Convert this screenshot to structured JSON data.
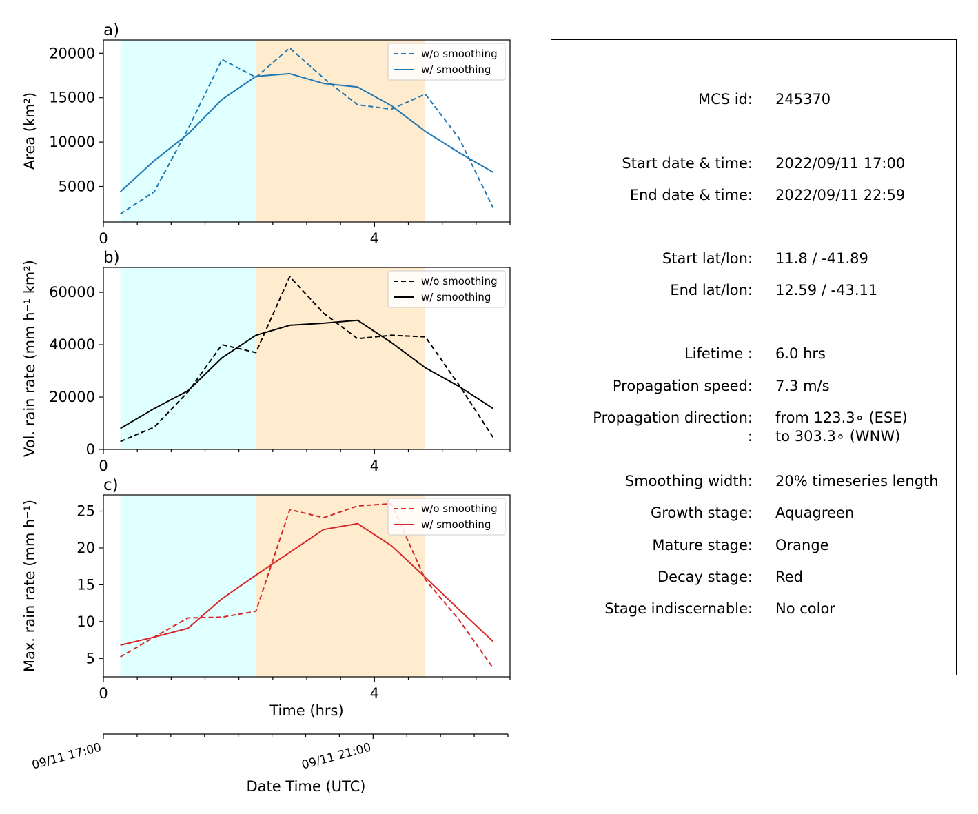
{
  "chart_data": [
    {
      "type": "line",
      "panel_label": "a)",
      "ylabel": "Area  (km²)",
      "xlabel": "",
      "xlim": [
        0,
        6
      ],
      "ylim": [
        1000,
        21500
      ],
      "xticks": [
        0,
        4
      ],
      "yticks": [
        5000,
        10000,
        15000,
        20000
      ],
      "stages": [
        {
          "name": "Growth",
          "from": 0.25,
          "to": 2.25,
          "color": "#e0ffff"
        },
        {
          "name": "Mature",
          "from": 2.25,
          "to": 4.75,
          "color": "#ffebcd"
        }
      ],
      "legend": "top-right",
      "series": [
        {
          "name": "w/o smoothing",
          "style": "dashed",
          "color": "#1f77b4",
          "x": [
            0.25,
            0.75,
            1.25,
            1.75,
            2.25,
            2.75,
            3.25,
            3.75,
            4.25,
            4.75,
            5.25,
            5.75
          ],
          "values": [
            1900,
            4400,
            11500,
            19300,
            17300,
            20600,
            17200,
            14200,
            13700,
            15400,
            10400,
            2600
          ]
        },
        {
          "name": "w/ smoothing",
          "style": "solid",
          "color": "#1f77b4",
          "x": [
            0.25,
            0.75,
            1.25,
            1.75,
            2.25,
            2.75,
            3.25,
            3.75,
            4.25,
            4.75,
            5.25,
            5.75
          ],
          "values": [
            4400,
            7900,
            10900,
            14800,
            17400,
            17700,
            16600,
            16200,
            14100,
            11200,
            8800,
            6600
          ]
        }
      ]
    },
    {
      "type": "line",
      "panel_label": "b)",
      "ylabel": "Vol. rain rate (mm h⁻¹ km²)",
      "xlabel": "",
      "xlim": [
        0,
        6
      ],
      "ylim": [
        0,
        69500
      ],
      "xticks": [
        0,
        4
      ],
      "yticks": [
        0,
        20000,
        40000,
        60000
      ],
      "stages": [
        {
          "name": "Growth",
          "from": 0.25,
          "to": 2.25,
          "color": "#e0ffff"
        },
        {
          "name": "Mature",
          "from": 2.25,
          "to": 4.75,
          "color": "#ffebcd"
        }
      ],
      "legend": "top-right",
      "series": [
        {
          "name": "w/o smoothing",
          "style": "dashed",
          "color": "#000000",
          "x": [
            0.25,
            0.75,
            1.25,
            1.75,
            2.25,
            2.75,
            3.25,
            3.75,
            4.25,
            4.75,
            5.25,
            5.75
          ],
          "values": [
            3000,
            8500,
            22000,
            40000,
            37000,
            66000,
            52000,
            42300,
            43600,
            43000,
            24500,
            4600
          ]
        },
        {
          "name": "w/ smoothing",
          "style": "solid",
          "color": "#000000",
          "x": [
            0.25,
            0.75,
            1.25,
            1.75,
            2.25,
            2.75,
            3.25,
            3.75,
            4.25,
            4.75,
            5.25,
            5.75
          ],
          "values": [
            8000,
            15600,
            22400,
            35000,
            43600,
            47400,
            48200,
            49300,
            40800,
            31200,
            24000,
            15600
          ]
        }
      ]
    },
    {
      "type": "line",
      "panel_label": "c)",
      "ylabel": "Max. rain rate  (mm h⁻¹)",
      "xlabel": "Time (hrs)",
      "xlim": [
        0,
        6
      ],
      "ylim": [
        2.5,
        27.2
      ],
      "xticks": [
        0,
        4
      ],
      "yticks": [
        5,
        10,
        15,
        20,
        25
      ],
      "stages": [
        {
          "name": "Growth",
          "from": 0.25,
          "to": 2.25,
          "color": "#e0ffff"
        },
        {
          "name": "Mature",
          "from": 2.25,
          "to": 4.75,
          "color": "#ffebcd"
        }
      ],
      "legend": "top-right",
      "series": [
        {
          "name": "w/o smoothing",
          "style": "dashed",
          "color": "#d62728",
          "x": [
            0.25,
            0.75,
            1.25,
            1.75,
            2.25,
            2.75,
            3.25,
            3.75,
            4.25,
            4.75,
            5.25,
            5.75
          ],
          "values": [
            5.2,
            7.9,
            10.5,
            10.6,
            11.4,
            25.2,
            24.1,
            25.7,
            26.0,
            15.7,
            10.2,
            3.7
          ]
        },
        {
          "name": "w/ smoothing",
          "style": "solid",
          "color": "#d62728",
          "x": [
            0.25,
            0.75,
            1.25,
            1.75,
            2.25,
            2.75,
            3.25,
            3.75,
            4.25,
            4.75,
            5.25,
            5.75
          ],
          "values": [
            6.8,
            7.9,
            9.1,
            13.1,
            16.3,
            19.4,
            22.5,
            23.3,
            20.3,
            16.0,
            11.6,
            7.3
          ]
        }
      ]
    }
  ],
  "date_axis": {
    "label": "Date Time (UTC)",
    "xlim": [
      "09/11 17:00",
      "09/11 23:00"
    ],
    "ticks": [
      {
        "hrs": 0,
        "label": "09/11 17:00"
      },
      {
        "hrs": 4,
        "label": "09/11 21:00"
      }
    ]
  },
  "info": {
    "rows": [
      {
        "label": "MCS id:",
        "value": "245370"
      },
      {
        "label": "Start date & time:",
        "value": "2022/09/11 17:00"
      },
      {
        "label": "End date & time:",
        "value": "2022/09/11 22:59"
      },
      {
        "label": "Start lat/lon:",
        "value": "11.8 / -41.89"
      },
      {
        "label": "End lat/lon:",
        "value": "12.59 / -43.11"
      },
      {
        "label": "Lifetime :",
        "value": "6.0 hrs"
      },
      {
        "label": "Propagation speed:",
        "value": "7.3 m/s"
      },
      {
        "label": "Propagation direction:",
        "value": "from 123.3∘ (ESE)"
      },
      {
        "label": ":",
        "value": "to   303.3∘ (WNW)"
      },
      {
        "label": "Smoothing width:",
        "value": "20% timeseries length"
      },
      {
        "label": "Growth stage:",
        "value": "Aquagreen"
      },
      {
        "label": "Mature stage:",
        "value": "Orange"
      },
      {
        "label": "Decay stage:",
        "value": "Red"
      },
      {
        "label": "Stage indiscernable:",
        "value": "No color"
      }
    ]
  }
}
